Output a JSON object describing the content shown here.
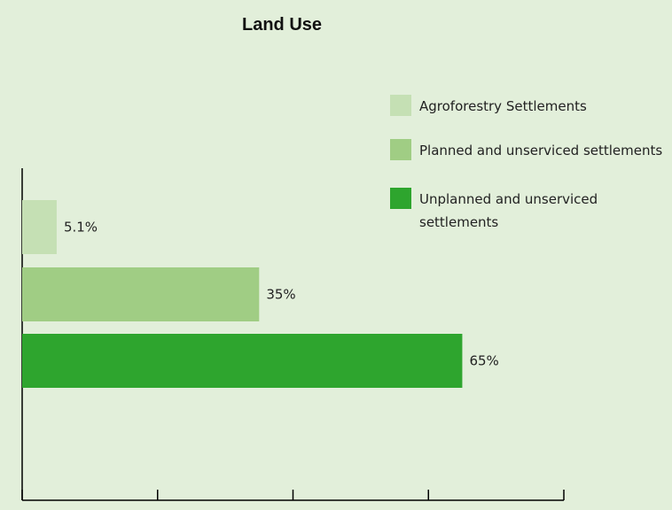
{
  "chart_data": {
    "type": "bar",
    "orientation": "horizontal",
    "title": "Land Use",
    "xlabel": "",
    "ylabel": "",
    "xlim": [
      0,
      80
    ],
    "x_ticks": [
      "0%",
      "20%",
      "40%",
      "60%",
      "80%"
    ],
    "grid": false,
    "legend_position": "top-right",
    "categories": [
      "Agroforestry Settlements",
      "Planned and unserviced settlements",
      "Unplanned and unserviced settlements"
    ],
    "values": [
      5.1,
      35,
      65
    ],
    "data_labels": [
      "5.1%",
      "35%",
      "65%"
    ],
    "colors": [
      "#c5e0b4",
      "#a0cd84",
      "#2ea52e"
    ]
  },
  "legend": {
    "items": [
      {
        "lines": [
          "Agroforestry Settlements"
        ],
        "color": "#c5e0b4"
      },
      {
        "lines": [
          "Planned and unserviced settlements"
        ],
        "color": "#a0cd84"
      },
      {
        "lines": [
          "Unplanned and unserviced",
          "settlements"
        ],
        "color": "#2ea52e"
      }
    ]
  },
  "colors": {
    "background": "#e2efda",
    "axis": "#000000"
  }
}
